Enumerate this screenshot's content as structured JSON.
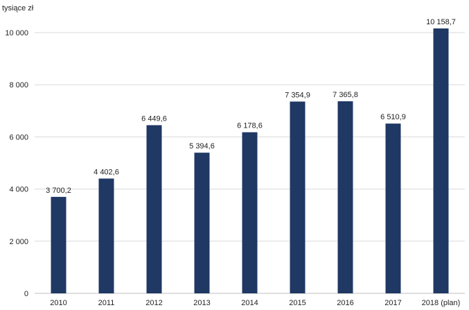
{
  "chart_data": {
    "type": "bar",
    "title": "",
    "xlabel": "",
    "ylabel": "tysiące zł",
    "categories": [
      "2010",
      "2011",
      "2012",
      "2013",
      "2014",
      "2015",
      "2016",
      "2017",
      "2018 (plan)"
    ],
    "values": [
      3700.2,
      4402.6,
      6449.6,
      5394.6,
      6178.6,
      7354.9,
      7365.8,
      6510.9,
      10158.7
    ],
    "data_labels": [
      "3 700,2",
      "4 402,6",
      "6 449,6",
      "5 394,6",
      "6 178,6",
      "7 354,9",
      "7 365,8",
      "6 510,9",
      "10 158,7"
    ],
    "ylim": [
      0,
      10000
    ],
    "yticks": [
      0,
      2000,
      4000,
      6000,
      8000,
      10000
    ],
    "ytick_labels": [
      "0",
      "2 000",
      "4 000",
      "6 000",
      "8 000",
      "10 000"
    ],
    "grid": true,
    "legend": "none",
    "colors": {
      "bar": "#1f3864",
      "grid": "#d9d9d9",
      "axis": "#bfbfbf",
      "text": "#222222"
    }
  }
}
